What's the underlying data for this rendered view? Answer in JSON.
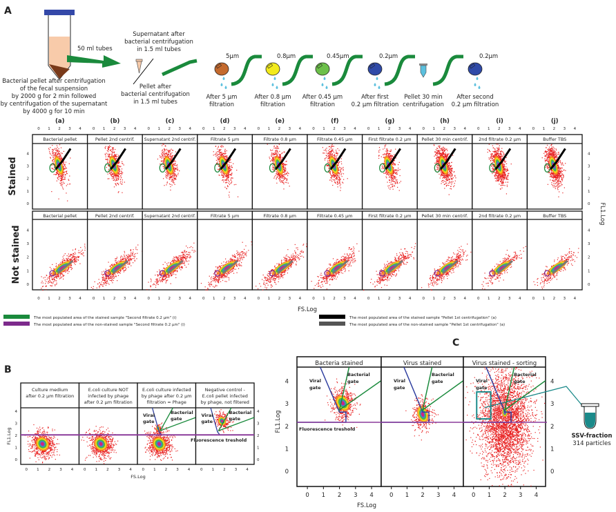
{
  "panel_A": {
    "label": "A",
    "steps": [
      {
        "pore": "",
        "caption": [
          "Bacterial pellet after centrifugation",
          "of the fecal suspension",
          "by 2000 g for 2 min followed",
          "by centrifugation of the supernatant",
          "by 4000 g for 10 min"
        ],
        "note": "50 ml tubes"
      },
      {
        "caption_top": [
          "Supernatant after",
          "bacterial centrifugation",
          "in 1.5 ml tubes"
        ],
        "caption": [
          "Pellet after",
          "bacterial centrifugation",
          "in 1.5 ml tubes"
        ]
      },
      {
        "pore": "5µm",
        "caption": [
          "After 5 µm",
          "filtration"
        ],
        "color": "#c46a2e"
      },
      {
        "pore": "0.8µm",
        "caption": [
          "After 0.8 µm",
          "filtration"
        ],
        "color": "#f2ea1c"
      },
      {
        "pore": "0.45µm",
        "caption": [
          "After 0.45 µm",
          "filtration"
        ],
        "color": "#6cc04a"
      },
      {
        "pore": "0.2µm",
        "caption": [
          "After first",
          "0.2 µm filtration"
        ],
        "color": "#2f4aa8"
      },
      {
        "pore": "",
        "caption": [
          "Pellet 30 min",
          "centrifugation"
        ]
      },
      {
        "pore": "0.2µm",
        "caption": [
          "After second",
          "0.2 µm filtration"
        ],
        "color": "#2f4aa8"
      }
    ],
    "columns": [
      {
        "letter": "(a)",
        "title": "Bacterial pellet"
      },
      {
        "letter": "(b)",
        "title": "Pellet 2nd centrif."
      },
      {
        "letter": "(c)",
        "title": "Supernatant 2nd centrif."
      },
      {
        "letter": "(d)",
        "title": "Filtrate 5 µm"
      },
      {
        "letter": "(e)",
        "title": "Filtrate 0.8 µm"
      },
      {
        "letter": "(f)",
        "title": "Filtrate 0.45 µm"
      },
      {
        "letter": "(g)",
        "title": "First filtrate 0.2 µm"
      },
      {
        "letter": "(h)",
        "title": "Pellet 30 min centrif."
      },
      {
        "letter": "(i)",
        "title": "2nd filtrate 0.2 µm"
      },
      {
        "letter": "(j)",
        "title": "Buffer TBS"
      }
    ],
    "rows": [
      "Stained",
      "Not stained"
    ],
    "xlabel": "FS.Log",
    "ylabel": "FL1.Log",
    "ticks": [
      "0",
      "1",
      "2",
      "3",
      "4"
    ],
    "legend": [
      {
        "color": "#1a8a3c",
        "text": "The most populated area of the stained sample \"Second filtrate 0.2 µm\" (i)"
      },
      {
        "color": "#7d2a8c",
        "text": "The most populated area of the non-stained sample \"Second filtrate 0.2 µm\" (i)"
      },
      {
        "color": "#000000",
        "text": "The most populated area of the stained sample \"Pellet 1st centrifugation\" (a)"
      },
      {
        "color": "#555555",
        "text": "The most populated area of the non-stained sample \"Pellet 1st centrifugation\" (a)"
      }
    ]
  },
  "panel_B": {
    "label": "B",
    "titles": [
      [
        "Culture medium",
        "after 0.2 µm filtration"
      ],
      [
        "E.coli culture NOT",
        "infected by phage",
        "after 0.2 µm filtration"
      ],
      [
        "E.coli culture infected",
        "by phage after 0.2 µm",
        "filtration = Phage"
      ],
      [
        "Negative control -",
        "E.coli pellet infected",
        "by phage, not filtered"
      ]
    ],
    "xlabel": "FS.Log",
    "ylabel": "FL1.Log",
    "viral_gate": [
      "Viral",
      "gate"
    ],
    "bacterial_gate": [
      "Bacterial",
      "gate"
    ],
    "threshold": "Fluorescence treshold",
    "threshold_value": 2
  },
  "panel_C": {
    "label": "C",
    "titles": [
      "Bacteria stained",
      "Virus stained",
      "Virus stained - sorting"
    ],
    "xlabel": "FS.Log",
    "ylabel": "FL1.Log",
    "viral_gate": [
      "Viral",
      "gate"
    ],
    "bacterial_gate": [
      "Bacterial",
      "gate"
    ],
    "threshold": "Fluorescence treshold",
    "output_label": "SSV-fraction",
    "output_count": "314 particles"
  },
  "colors": {
    "viral_gate": "#2f3fa0",
    "bacterial_gate": "#1a8a3c",
    "threshold": "#8a3a9a",
    "ssv": "#1b8a8a",
    "arrow": "#1a8a3c"
  }
}
